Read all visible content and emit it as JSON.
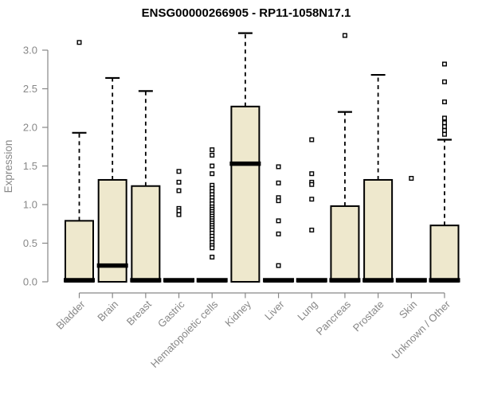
{
  "colors": {
    "background": "#ffffff",
    "box_fill": "#EEE8CD",
    "box_stroke": "#000000",
    "axis": "#878787",
    "title": "#000000"
  },
  "chart_data": {
    "type": "boxplot",
    "title": "ENSG00000266905 - RP11-1058N17.1",
    "xlabel": "",
    "ylabel": "Expression",
    "ylim": [
      0.0,
      3.0
    ],
    "yticks": [
      0.0,
      0.5,
      1.0,
      1.5,
      2.0,
      2.5,
      3.0
    ],
    "grid": false,
    "outlier_marker": "open-square",
    "categories": [
      "Bladder",
      "Brain",
      "Breast",
      "Gastric",
      "Hematopoietic cells",
      "Kidney",
      "Liver",
      "Lung",
      "Pancreas",
      "Prostate",
      "Skin",
      "Unknown / Other"
    ],
    "boxes": [
      {
        "category": "Bladder",
        "low": 0,
        "q1": 0,
        "median": 0.02,
        "q3": 0.79,
        "high": 1.93,
        "outliers": [
          3.1
        ]
      },
      {
        "category": "Brain",
        "low": 0,
        "q1": 0,
        "median": 0.21,
        "q3": 1.32,
        "high": 2.64,
        "outliers": []
      },
      {
        "category": "Breast",
        "low": 0,
        "q1": 0,
        "median": 0.02,
        "q3": 1.24,
        "high": 2.47,
        "outliers": []
      },
      {
        "category": "Gastric",
        "low": 0,
        "q1": 0,
        "median": 0.02,
        "q3": 0.02,
        "high": 0.02,
        "outliers": [
          1.43,
          1.29,
          1.18,
          0.95,
          0.92,
          0.87
        ]
      },
      {
        "category": "Hematopoietic cells",
        "low": 0,
        "q1": 0,
        "median": 0.02,
        "q3": 0.02,
        "high": 0.02,
        "outliers": [
          1.71,
          1.64,
          1.5,
          1.4,
          1.25,
          1.21,
          1.17,
          1.13,
          1.09,
          1.05,
          1.01,
          0.97,
          0.94,
          0.91,
          0.88,
          0.85,
          0.82,
          0.79,
          0.76,
          0.73,
          0.7,
          0.67,
          0.63,
          0.59,
          0.55,
          0.51,
          0.47,
          0.44,
          0.32
        ]
      },
      {
        "category": "Kidney",
        "low": 0,
        "q1": 0,
        "median": 1.53,
        "q3": 2.27,
        "high": 3.22,
        "outliers": []
      },
      {
        "category": "Liver",
        "low": 0,
        "q1": 0,
        "median": 0.02,
        "q3": 0.02,
        "high": 0.02,
        "outliers": [
          1.49,
          1.28,
          1.09,
          1.05,
          0.79,
          0.62,
          0.21
        ]
      },
      {
        "category": "Lung",
        "low": 0,
        "q1": 0,
        "median": 0.02,
        "q3": 0.02,
        "high": 0.02,
        "outliers": [
          1.84,
          1.4,
          1.29,
          1.26,
          1.07,
          0.67
        ]
      },
      {
        "category": "Pancreas",
        "low": 0,
        "q1": 0,
        "median": 0.02,
        "q3": 0.98,
        "high": 2.2,
        "outliers": [
          3.19
        ]
      },
      {
        "category": "Prostate",
        "low": 0,
        "q1": 0,
        "median": 0.02,
        "q3": 1.32,
        "high": 2.68,
        "outliers": []
      },
      {
        "category": "Skin",
        "low": 0,
        "q1": 0,
        "median": 0.02,
        "q3": 0.02,
        "high": 0.02,
        "outliers": [
          1.34
        ]
      },
      {
        "category": "Unknown / Other",
        "low": 0,
        "q1": 0,
        "median": 0.02,
        "q3": 0.73,
        "high": 1.84,
        "outliers": [
          2.82,
          2.59,
          2.33,
          2.12,
          2.06,
          2.01,
          1.96,
          1.91
        ]
      }
    ]
  }
}
